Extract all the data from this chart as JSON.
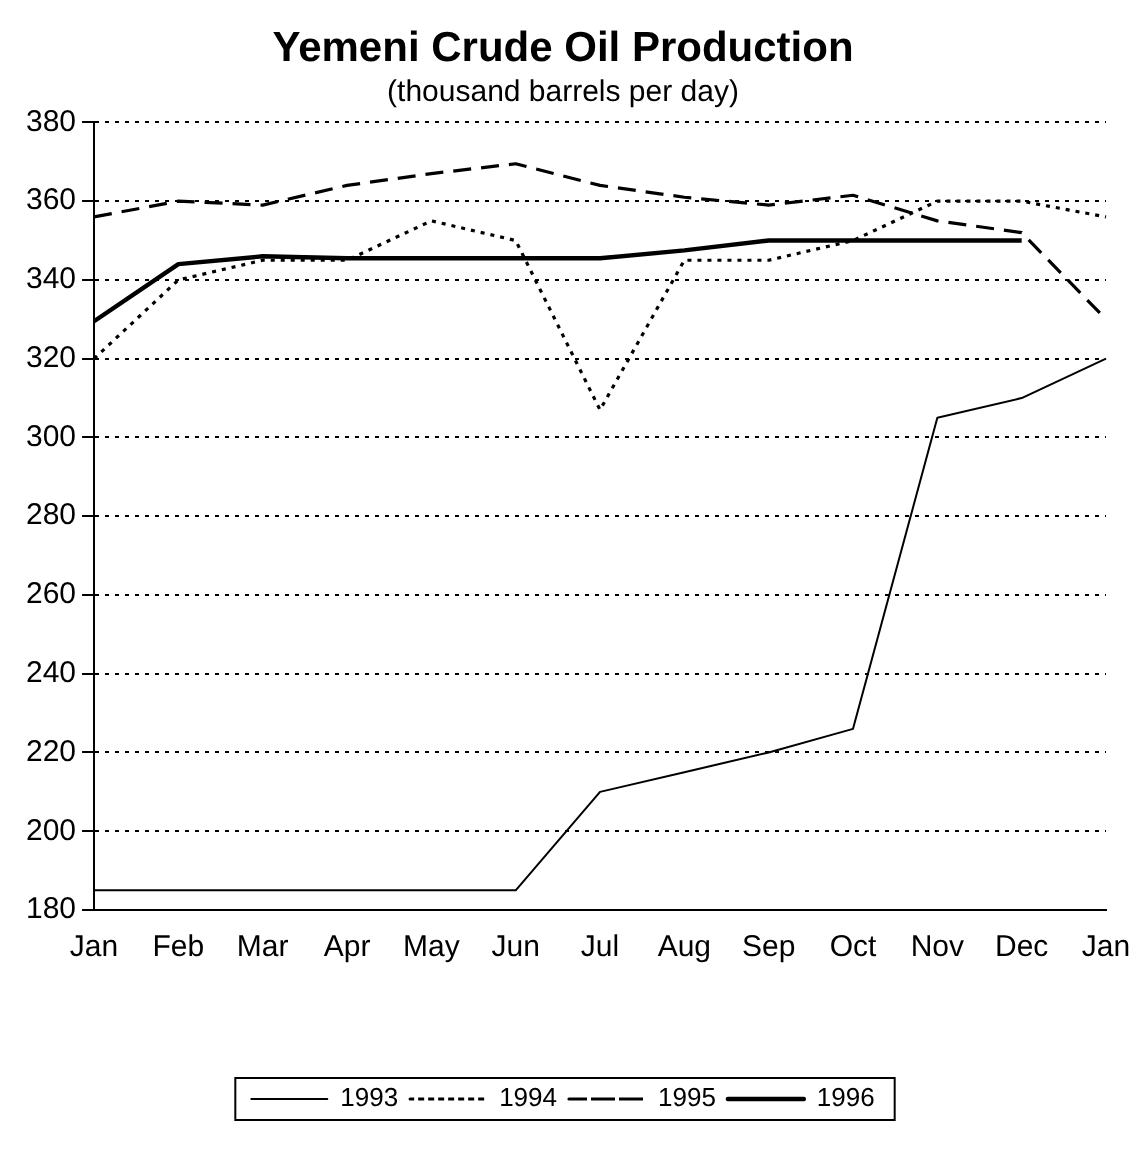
{
  "chart_data": {
    "type": "line",
    "title": "Yemeni Crude Oil Production",
    "subtitle": "(thousand barrels per day)",
    "categories": [
      "Jan",
      "Feb",
      "Mar",
      "Apr",
      "May",
      "Jun",
      "Jul",
      "Aug",
      "Sep",
      "Oct",
      "Nov",
      "Dec",
      "Jan"
    ],
    "series": [
      {
        "name": "1993",
        "color": "#000000",
        "line_style": "solid",
        "values": [
          185,
          185,
          185,
          185,
          185,
          185,
          210,
          215,
          220,
          226,
          305,
          310,
          320
        ]
      },
      {
        "name": "1994",
        "color": "#000000",
        "line_style": "dotted",
        "values": [
          320,
          340,
          345,
          345,
          355,
          350,
          307,
          345,
          345,
          350,
          360,
          360,
          356
        ]
      },
      {
        "name": "1995",
        "color": "#000000",
        "line_style": "dashed",
        "values": [
          356,
          360,
          359,
          364,
          367,
          369.5,
          364,
          361,
          359,
          361.5,
          355,
          352,
          330
        ]
      },
      {
        "name": "1996",
        "color": "#000000",
        "line_style": "solid",
        "values": [
          329.5,
          344,
          346,
          345.5,
          345.5,
          345.5,
          345.5,
          347.5,
          350,
          350,
          350,
          350,
          null
        ]
      }
    ],
    "ylim": [
      180,
      380
    ],
    "yticks": [
      180,
      200,
      220,
      240,
      260,
      280,
      300,
      320,
      340,
      360,
      380
    ],
    "grid": "y",
    "legend": "bottom",
    "marker": "none"
  }
}
